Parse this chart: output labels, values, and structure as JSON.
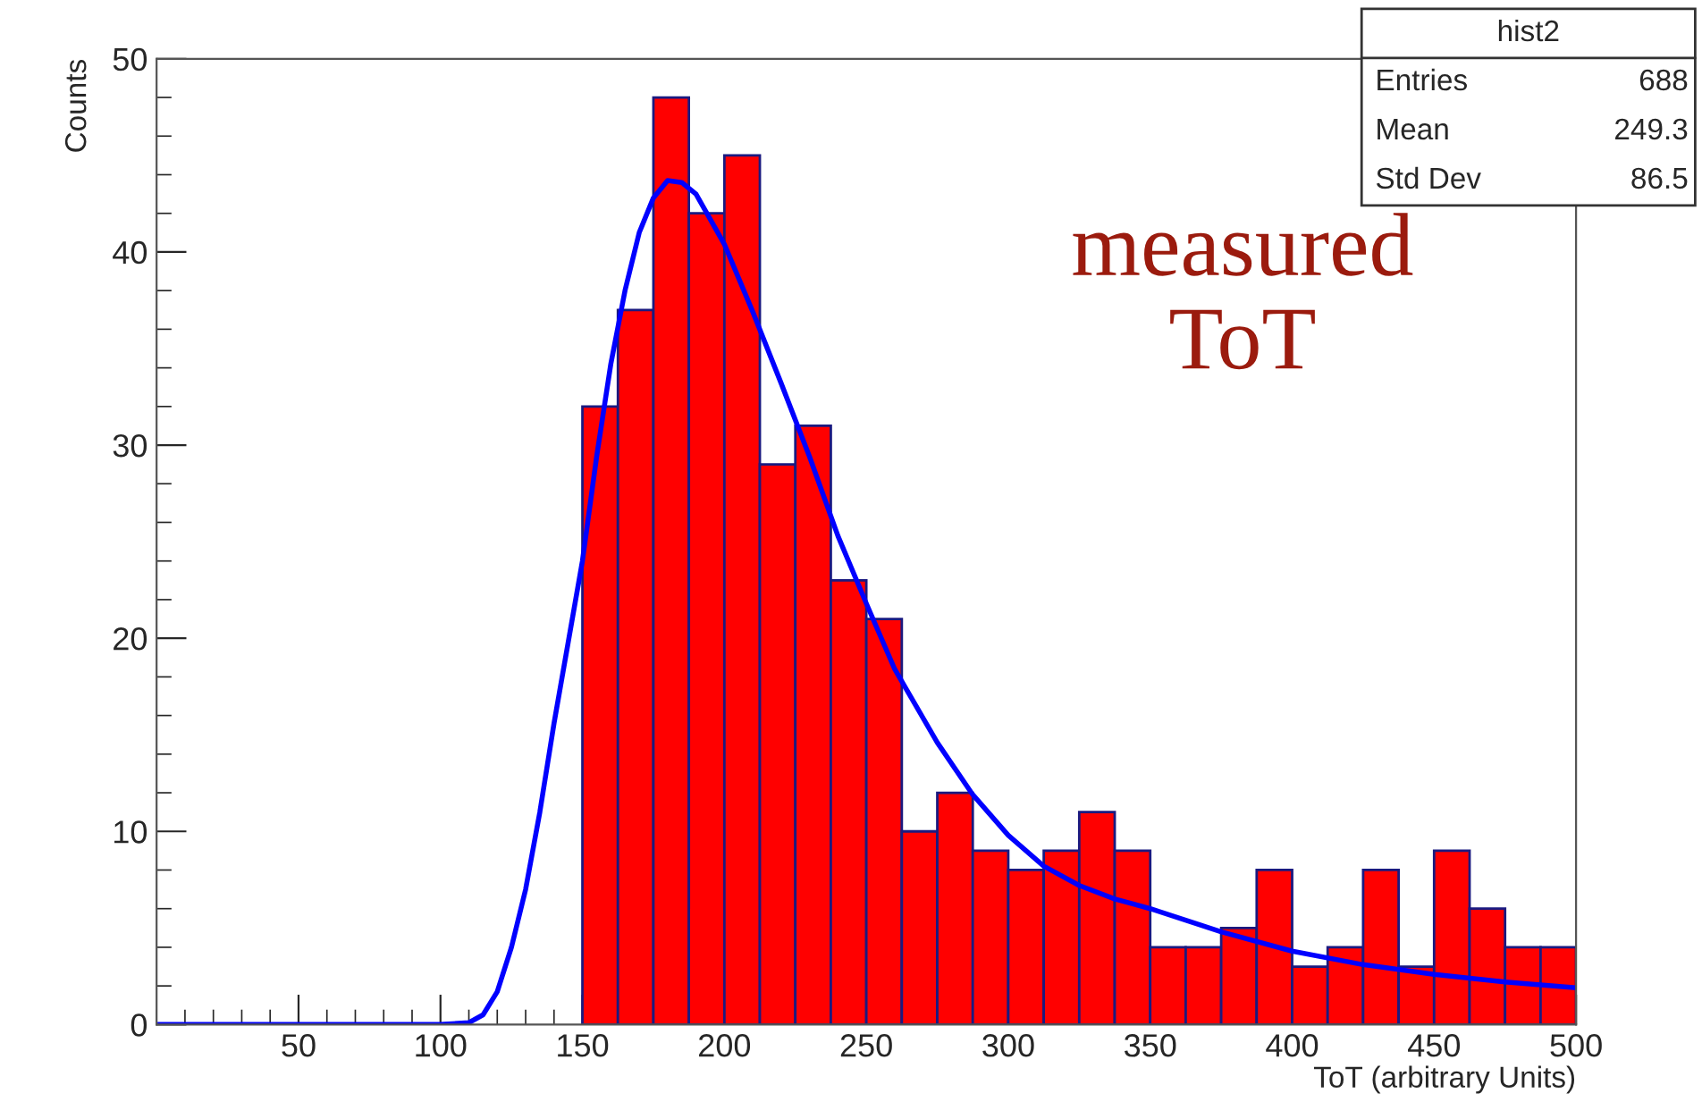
{
  "chart_data": {
    "type": "histogram",
    "xlabel": "ToT (arbitrary Units)",
    "ylabel": "Counts",
    "bins": [
      150,
      162.5,
      175,
      187.5,
      200,
      212.5,
      225,
      237.5,
      250,
      262.5,
      275,
      287.5,
      300,
      312.5,
      325,
      337.5,
      350,
      362.5,
      375,
      387.5,
      400,
      412.5,
      425,
      437.5,
      450,
      462.5,
      475,
      487.5,
      500
    ],
    "values": [
      32,
      37,
      48,
      42,
      45,
      29,
      31,
      23,
      21,
      10,
      12,
      9,
      8,
      9,
      11,
      9,
      4,
      4,
      5,
      8,
      3,
      4,
      8,
      3,
      9,
      6,
      4,
      4
    ],
    "color": "#ff0000",
    "series": [
      {
        "type": "line",
        "color": "#0000ff",
        "x": [
          0,
          100,
          110,
          115,
          120,
          125,
          130,
          135,
          140,
          145,
          150,
          155,
          160,
          165,
          170,
          175,
          180,
          185,
          190,
          200,
          210,
          220,
          230,
          240,
          250,
          260,
          275,
          287.5,
          300,
          312.5,
          325,
          337.5,
          350,
          362.5,
          375,
          400,
          425,
          450,
          475,
          500
        ],
        "values": [
          0,
          0,
          0.1,
          0.5,
          1.7,
          4,
          7,
          11,
          15.6,
          19.8,
          24,
          29.4,
          34.2,
          38,
          41,
          42.8,
          43.7,
          43.6,
          43,
          40.4,
          36.9,
          33.2,
          29.4,
          25.3,
          21.8,
          18.4,
          14.6,
          11.9,
          9.8,
          8.2,
          7.2,
          6.5,
          6.0,
          5.4,
          4.8,
          3.8,
          3.1,
          2.6,
          2.2,
          1.9
        ]
      }
    ],
    "xlim": [
      0,
      500
    ],
    "ylim": [
      0,
      50
    ],
    "xticks": [
      50,
      100,
      150,
      200,
      250,
      300,
      350,
      400,
      450,
      500
    ],
    "yticks": [
      0,
      10,
      20,
      30,
      40,
      50
    ],
    "grid": false,
    "legend": false,
    "annotations": [
      "hist2",
      "Entries",
      "688",
      "Mean",
      "249.3",
      "Std Dev",
      "86.5",
      "measured\nToT"
    ]
  }
}
